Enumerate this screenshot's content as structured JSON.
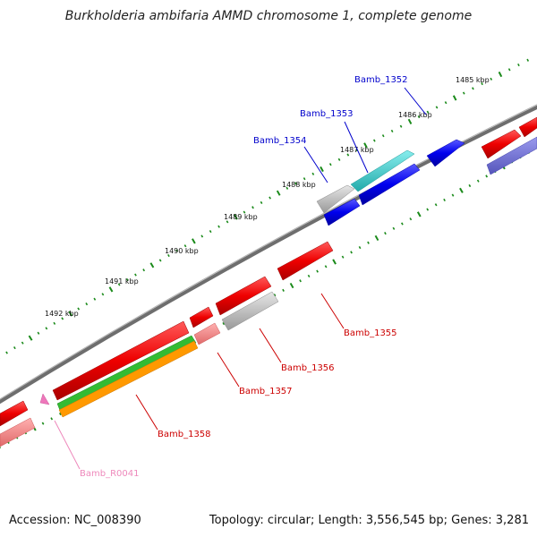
{
  "title": "Burkholderia ambifaria AMMD chromosome 1, complete genome",
  "footer": {
    "accession": "Accession: NC_008390",
    "summary": "Topology: circular; Length: 3,556,545 bp; Genes: 3,281"
  },
  "ticks": [
    "1485 kbp",
    "1486 kbp",
    "1487 kbp",
    "1488 kbp",
    "1489 kbp",
    "1490 kbp",
    "1491 kbp",
    "1492 kbp"
  ],
  "genes": [
    {
      "id": "Bamb_1352",
      "label": "Bamb_1352",
      "color": "#0000cc"
    },
    {
      "id": "Bamb_1353",
      "label": "Bamb_1353",
      "color": "#0000cc"
    },
    {
      "id": "Bamb_1354",
      "label": "Bamb_1354",
      "color": "#0000cc"
    },
    {
      "id": "Bamb_1355",
      "label": "Bamb_1355",
      "color": "#cc0000"
    },
    {
      "id": "Bamb_1356",
      "label": "Bamb_1356",
      "color": "#cc0000"
    },
    {
      "id": "Bamb_1357",
      "label": "Bamb_1357",
      "color": "#cc0000"
    },
    {
      "id": "Bamb_1358",
      "label": "Bamb_1358",
      "color": "#cc0000"
    },
    {
      "id": "Bamb_R0041",
      "label": "Bamb_R0041",
      "color": "#ee88bb"
    }
  ],
  "colors": {
    "forward_gene": "#0000ee",
    "reverse_gene": "#ee0000",
    "backbone": "#777777",
    "tick": "#1a8a1a",
    "cyan": "#33cccc",
    "gray": "#aaaaaa",
    "green": "#33bb33",
    "orange": "#ff9900",
    "pink": "#f08080",
    "purple": "#6666cc"
  }
}
